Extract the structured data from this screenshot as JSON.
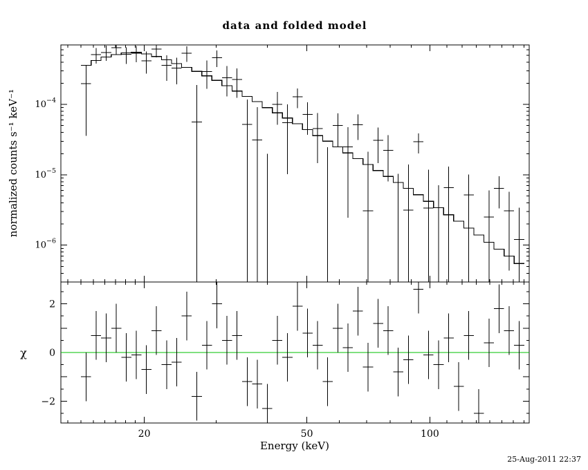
{
  "window": {
    "background": "#ffffff",
    "foreground": "#000000"
  },
  "timestamp": "25-Aug-2011 22:37",
  "chart_data": {
    "type": "line",
    "subtype": "counts-spectrum-with-residuals",
    "title": "data and folded model",
    "xlabel": "Energy (keV)",
    "ylabel_top": "normalized counts s⁻¹ keV⁻¹",
    "ylabel_bottom": "χ",
    "x_scale": "log",
    "x_range": [
      12.5,
      175
    ],
    "x_ticks": [
      20,
      50,
      100
    ],
    "grid": false,
    "legend": "none",
    "colors": {
      "data": "#000000",
      "model": "#000000",
      "zero_line": "#00c000"
    },
    "top": {
      "y_scale": "log",
      "y_range": [
        3e-07,
        0.0007
      ],
      "y_ticks": [
        0.0001,
        1e-05,
        1e-06
      ],
      "y_tick_exponents": [
        -4,
        -5,
        -6
      ]
    },
    "bottom": {
      "y_scale": "linear",
      "y_range": [
        -2.9,
        2.9
      ],
      "y_ticks": [
        -2,
        0,
        2
      ],
      "error_bar_half_height": 1
    },
    "bins": {
      "edges": [
        14.0,
        14.82,
        15.68,
        16.6,
        17.57,
        18.59,
        19.68,
        20.83,
        22.04,
        23.33,
        24.69,
        26.13,
        27.66,
        29.27,
        30.98,
        32.79,
        34.71,
        36.73,
        38.88,
        41.15,
        43.55,
        46.1,
        48.79,
        51.64,
        54.65,
        57.85,
        61.23,
        64.8,
        68.59,
        72.6,
        76.84,
        81.33,
        86.08,
        91.11,
        96.43,
        102.07,
        108.03,
        114.35,
        121.03,
        128.1,
        135.58,
        143.51,
        151.89,
        160.77,
        170.16
      ],
      "model": [
        0.00036,
        0.00042,
        0.00047,
        0.00051,
        0.00054,
        0.00055,
        0.00052,
        0.00048,
        0.00043,
        0.00038,
        0.000335,
        0.000295,
        0.000255,
        0.00022,
        0.000185,
        0.000155,
        0.00013,
        0.00011,
        9e-05,
        7.6e-05,
        6.4e-05,
        5.3e-05,
        4.4e-05,
        3.6e-05,
        3e-05,
        2.5e-05,
        2.05e-05,
        1.7e-05,
        1.4e-05,
        1.15e-05,
        9.5e-06,
        7.8e-06,
        6.4e-06,
        5.2e-06,
        4.2e-06,
        3.4e-06,
        2.7e-06,
        2.2e-06,
        1.75e-06,
        1.4e-06,
        1.1e-06,
        8.8e-07,
        7e-07,
        5.5e-07
      ],
      "sigma_rel": [
        0.45,
        0.3,
        0.28,
        0.25,
        0.25,
        0.25,
        0.28,
        0.3,
        0.33,
        0.35,
        0.4,
        0.45,
        0.5,
        0.55,
        0.6,
        0.65,
        0.5,
        0.55,
        0.6,
        0.65,
        0.7,
        0.75,
        0.8,
        0.85,
        0.9,
        1.0,
        1.1,
        1.2,
        1.3,
        1.4,
        1.5,
        1.6,
        1.7,
        1.8,
        2.0,
        2.2,
        2.4,
        2.6,
        2.8,
        3.0,
        3.2,
        3.5,
        3.8,
        4.0
      ],
      "chi": [
        -1.0,
        0.7,
        0.6,
        1.0,
        -0.2,
        -0.1,
        -0.7,
        0.9,
        -0.5,
        -0.4,
        1.5,
        -1.8,
        0.3,
        2.0,
        0.5,
        0.7,
        -1.2,
        -1.3,
        -2.3,
        0.5,
        -0.2,
        1.9,
        0.8,
        0.3,
        -1.2,
        1.0,
        0.2,
        1.7,
        -0.6,
        1.2,
        0.9,
        -0.8,
        -0.3,
        2.6,
        -0.1,
        -0.5,
        0.6,
        -1.4,
        0.7,
        -2.5,
        0.4,
        1.8,
        0.9,
        0.3
      ]
    }
  }
}
